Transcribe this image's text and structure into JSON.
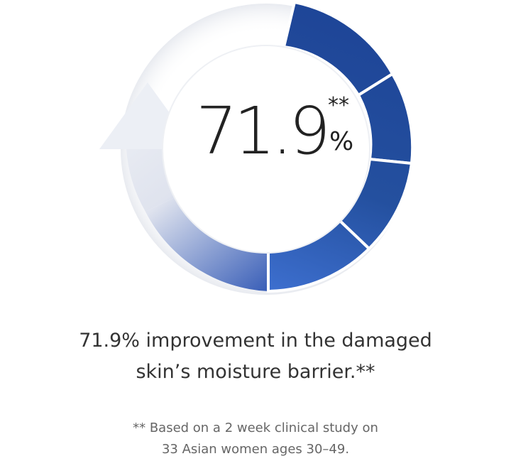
{
  "stat": {
    "value": "71.9",
    "marker": "**",
    "unit": "%"
  },
  "progress": {
    "percent": 71.9,
    "segments": 5
  },
  "headline": {
    "line1": "71.9% improvement in the damaged",
    "line2": "skin’s moisture barrier.**"
  },
  "footnote": {
    "line1": "** Based on a 2 week clinical study on",
    "line2": "33 Asian women ages 30–49."
  },
  "colors": {
    "ring_dark": "#1d4396",
    "ring_light": "#3d6fcf",
    "arrow_light": "#eef0f5",
    "text": "#333333",
    "note": "#666666"
  }
}
